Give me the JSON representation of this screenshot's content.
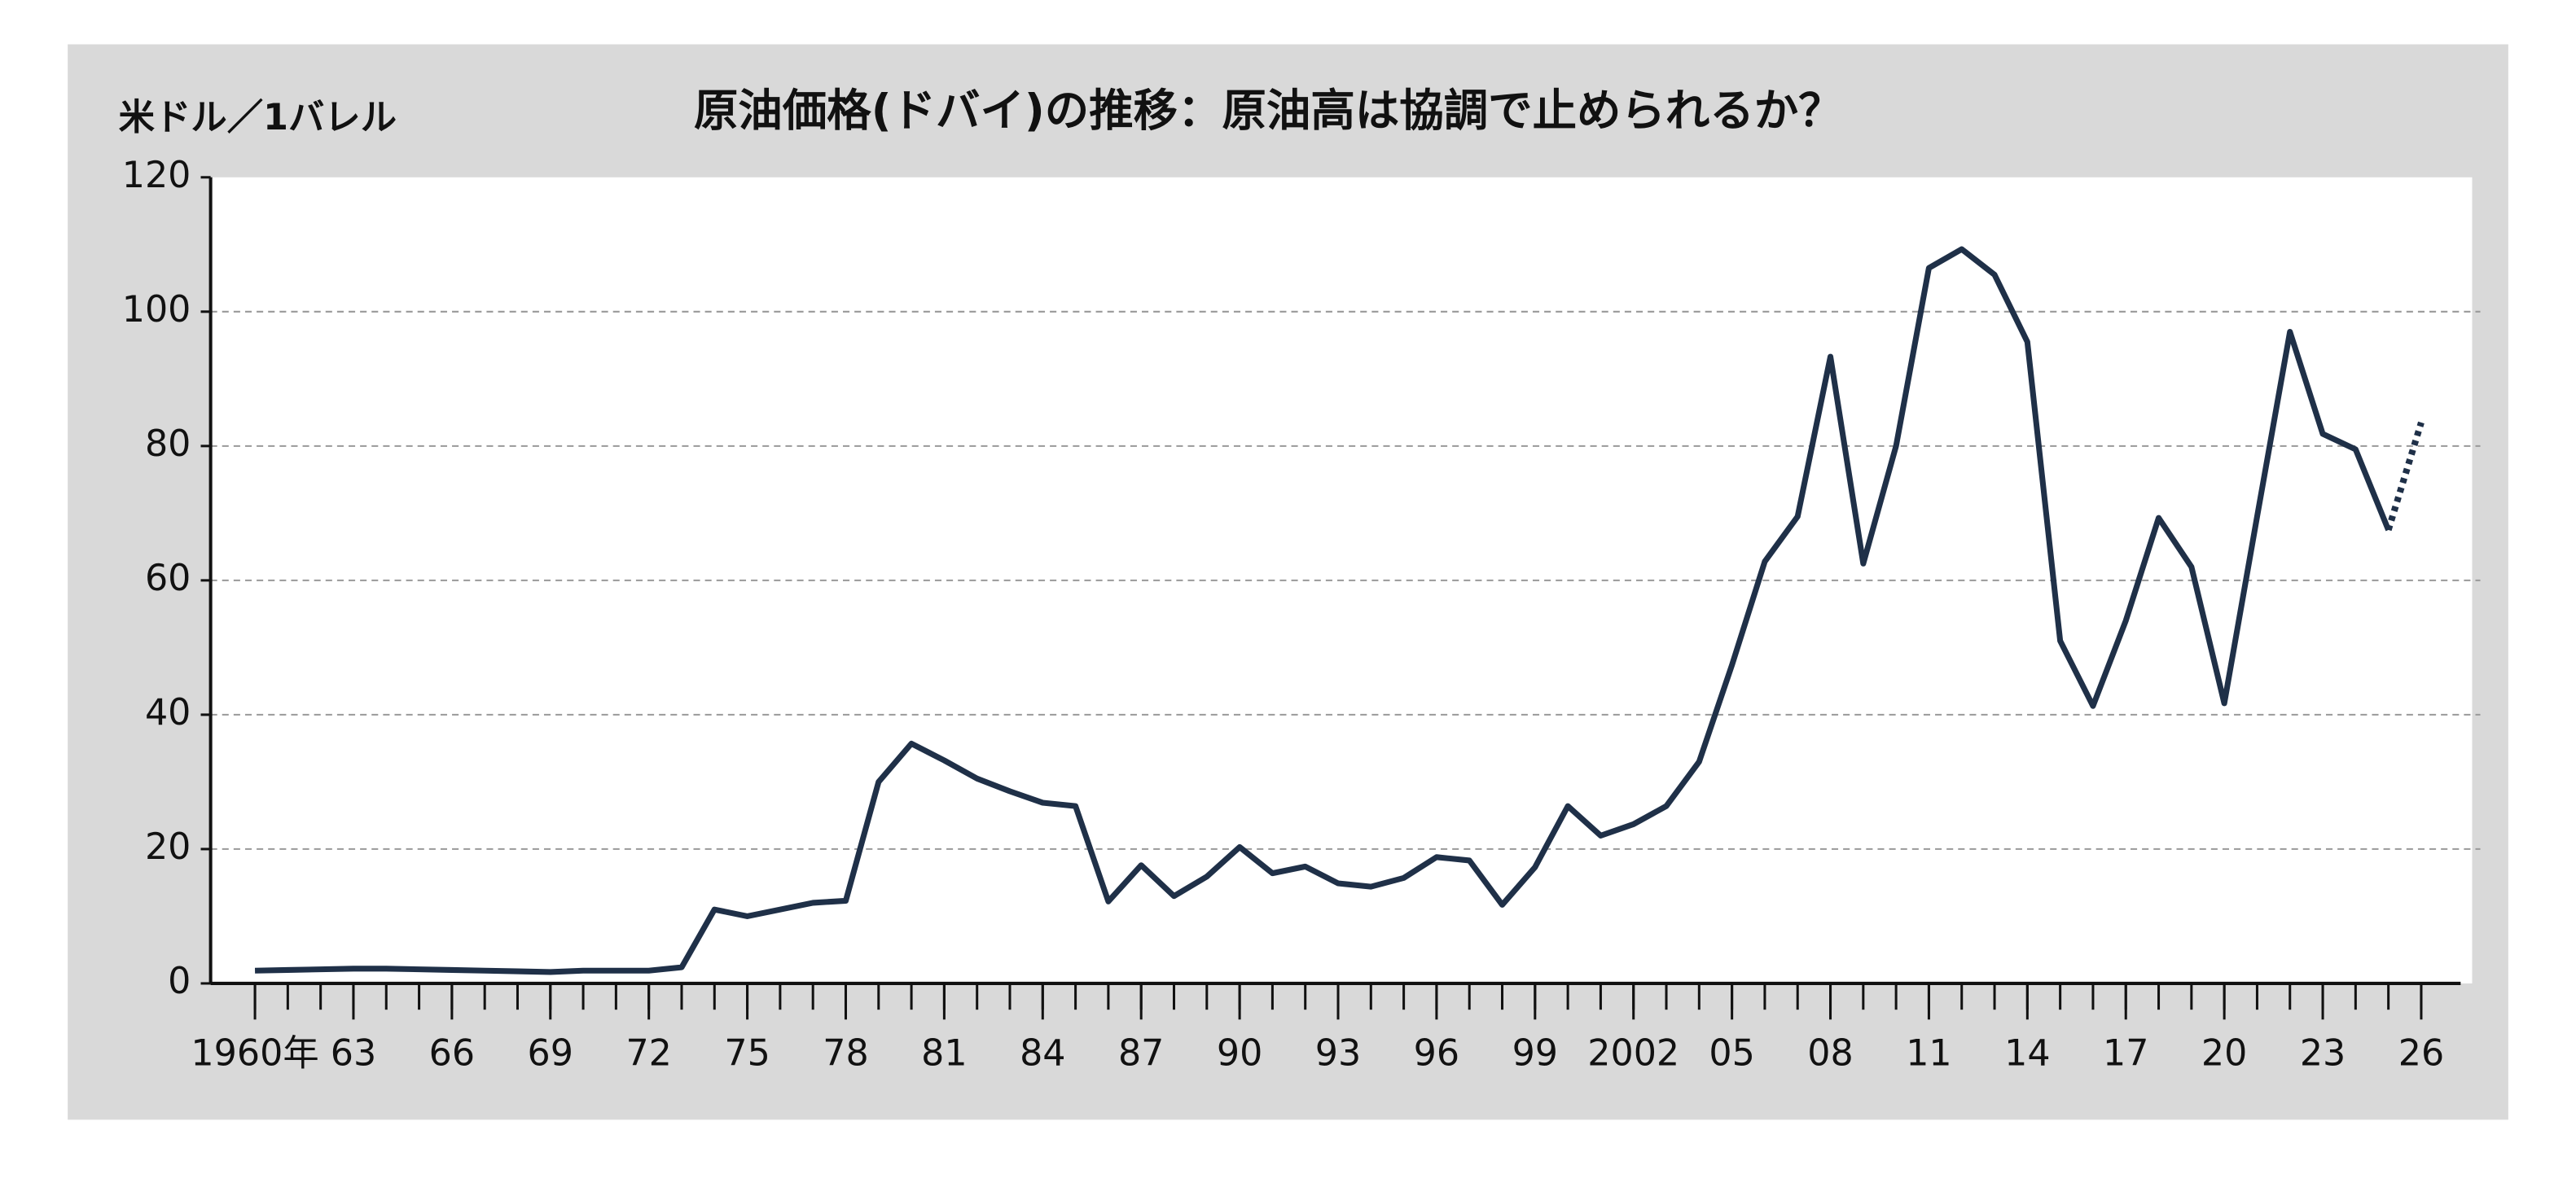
{
  "chart_data": {
    "type": "line",
    "title": "原油価格(ドバイ)の推移：原油高は協調で止められるか？",
    "y_axis_label": "米ドル／1バレル",
    "x": [
      1960,
      1961,
      1962,
      1963,
      1964,
      1965,
      1966,
      1967,
      1968,
      1969,
      1970,
      1971,
      1972,
      1973,
      1974,
      1975,
      1976,
      1977,
      1978,
      1979,
      1980,
      1981,
      1982,
      1983,
      1984,
      1985,
      1986,
      1987,
      1988,
      1989,
      1990,
      1991,
      1992,
      1993,
      1994,
      1995,
      1996,
      1997,
      1998,
      1999,
      2000,
      2001,
      2002,
      2003,
      2004,
      2005,
      2006,
      2007,
      2008,
      2009,
      2010,
      2011,
      2012,
      2013,
      2014,
      2015,
      2016,
      2017,
      2018,
      2019,
      2020,
      2021,
      2022,
      2023,
      2024,
      2025,
      2026
    ],
    "series": [
      {
        "color": "#1f3048",
        "dash": false,
        "values": [
          1.9,
          2.0,
          2.1,
          2.2,
          2.2,
          2.1,
          2.0,
          1.9,
          1.8,
          1.7,
          1.9,
          1.9,
          1.9,
          2.4,
          11.0,
          10.0,
          11.0,
          12.0,
          12.3,
          30.0,
          35.7,
          33.2,
          30.5,
          28.6,
          26.9,
          26.4,
          12.2,
          17.6,
          13.0,
          15.9,
          20.3,
          16.4,
          17.4,
          14.9,
          14.4,
          15.7,
          18.8,
          18.3,
          11.7,
          17.3,
          26.4,
          22.0,
          23.7,
          26.4,
          33.0,
          47.4,
          62.8,
          69.5,
          93.3,
          62.5,
          80.0,
          106.5,
          109.3,
          105.5,
          95.5,
          51.0,
          41.3,
          54.0,
          69.3,
          62.0,
          41.7,
          69.5,
          97.0,
          81.8,
          79.5,
          67.5,
          null
        ]
      },
      {
        "color": "#1f3048",
        "dash": true,
        "values": [
          null,
          null,
          null,
          null,
          null,
          null,
          null,
          null,
          null,
          null,
          null,
          null,
          null,
          null,
          null,
          null,
          null,
          null,
          null,
          null,
          null,
          null,
          null,
          null,
          null,
          null,
          null,
          null,
          null,
          null,
          null,
          null,
          null,
          null,
          null,
          null,
          null,
          null,
          null,
          null,
          null,
          null,
          null,
          null,
          null,
          null,
          null,
          null,
          null,
          null,
          null,
          null,
          null,
          null,
          null,
          null,
          null,
          null,
          null,
          null,
          null,
          null,
          null,
          null,
          null,
          67.5,
          83.5
        ]
      }
    ],
    "xlim": [
      1960,
      2026
    ],
    "xticks": [
      {
        "value": 1960,
        "label": "1960年"
      },
      {
        "value": 1963,
        "label": "63"
      },
      {
        "value": 1966,
        "label": "66"
      },
      {
        "value": 1969,
        "label": "69"
      },
      {
        "value": 1972,
        "label": "72"
      },
      {
        "value": 1975,
        "label": "75"
      },
      {
        "value": 1978,
        "label": "78"
      },
      {
        "value": 1981,
        "label": "81"
      },
      {
        "value": 1984,
        "label": "84"
      },
      {
        "value": 1987,
        "label": "87"
      },
      {
        "value": 1990,
        "label": "90"
      },
      {
        "value": 1993,
        "label": "93"
      },
      {
        "value": 1996,
        "label": "96"
      },
      {
        "value": 1999,
        "label": "99"
      },
      {
        "value": 2002,
        "label": "2002"
      },
      {
        "value": 2005,
        "label": "05"
      },
      {
        "value": 2008,
        "label": "08"
      },
      {
        "value": 2011,
        "label": "11"
      },
      {
        "value": 2014,
        "label": "14"
      },
      {
        "value": 2017,
        "label": "17"
      },
      {
        "value": 2020,
        "label": "20"
      },
      {
        "value": 2023,
        "label": "23"
      },
      {
        "value": 2026,
        "label": "26"
      }
    ],
    "ylim": [
      0,
      120
    ],
    "yticks": [
      0,
      20,
      40,
      60,
      80,
      100,
      120
    ],
    "grid": true
  }
}
